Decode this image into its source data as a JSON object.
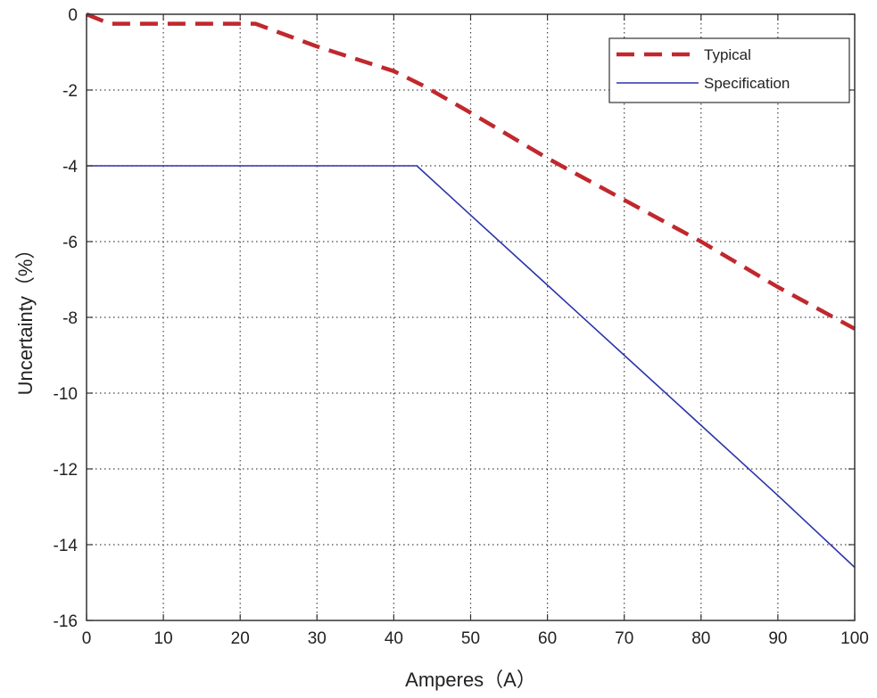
{
  "chart_data": {
    "type": "line",
    "title": "",
    "xlabel": "Amperes（A）",
    "ylabel": "Uncertainty（%）",
    "xlim": [
      0,
      100
    ],
    "ylim": [
      -16,
      0
    ],
    "x_ticks": [
      0,
      10,
      20,
      30,
      40,
      50,
      60,
      70,
      80,
      90,
      100
    ],
    "y_ticks": [
      0,
      -2,
      -4,
      -6,
      -8,
      -10,
      -12,
      -14,
      -16
    ],
    "x_tick_labels": [
      "0",
      "10",
      "20",
      "30",
      "40",
      "50",
      "60",
      "70",
      "80",
      "90",
      "100"
    ],
    "y_tick_labels": [
      "0",
      "-2",
      "-4",
      "-6",
      "-8",
      "-10",
      "-12",
      "-14",
      "-16"
    ],
    "grid": true,
    "legend_position": "top-right",
    "series": [
      {
        "name": "Typical",
        "color": "#c0282d",
        "style": "dashed",
        "x": [
          0,
          3,
          20,
          22,
          30,
          40,
          44,
          50,
          60,
          70,
          80,
          90,
          100
        ],
        "y": [
          0,
          -0.25,
          -0.25,
          -0.25,
          -0.85,
          -1.5,
          -1.9,
          -2.6,
          -3.8,
          -4.9,
          -6.0,
          -7.2,
          -8.3
        ]
      },
      {
        "name": "Specification",
        "color": "#2b35a8",
        "style": "solid",
        "x": [
          0,
          43,
          50,
          60,
          70,
          80,
          90,
          100
        ],
        "y": [
          -4,
          -4,
          -5.3,
          -7.15,
          -9.0,
          -10.85,
          -12.7,
          -14.6
        ]
      }
    ]
  }
}
